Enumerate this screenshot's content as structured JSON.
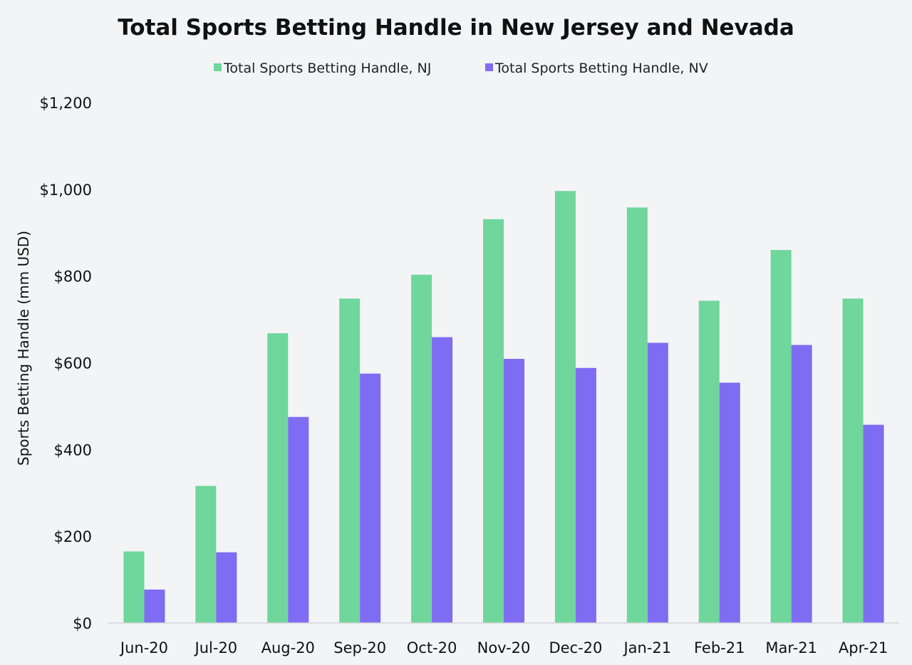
{
  "chart_data": {
    "type": "bar",
    "title": "Total Sports Betting Handle in New Jersey and Nevada",
    "xlabel": "",
    "ylabel": "Sports Betting Handle (mm USD)",
    "categories": [
      "Jun-20",
      "Jul-20",
      "Aug-20",
      "Sep-20",
      "Oct-20",
      "Nov-20",
      "Dec-20",
      "Jan-21",
      "Feb-21",
      "Mar-21",
      "Apr-21"
    ],
    "series": [
      {
        "name": "Total Sports Betting Handle, NJ",
        "color": "#6fd69c",
        "values": [
          165,
          316,
          668,
          748,
          803,
          931,
          996,
          958,
          743,
          860,
          748
        ]
      },
      {
        "name": "Total Sports Betting Handle, NV",
        "color": "#7e6cf2",
        "values": [
          77,
          163,
          475,
          575,
          659,
          609,
          588,
          646,
          554,
          641,
          457
        ]
      }
    ],
    "ylim": [
      0,
      1200
    ],
    "yticks": [
      0,
      200,
      400,
      600,
      800,
      1000,
      1200
    ],
    "ytick_labels": [
      "$0",
      "$200",
      "$400",
      "$600",
      "$800",
      "$1,000",
      "$1,200"
    ],
    "grid": false,
    "legend_position": "top-center"
  }
}
